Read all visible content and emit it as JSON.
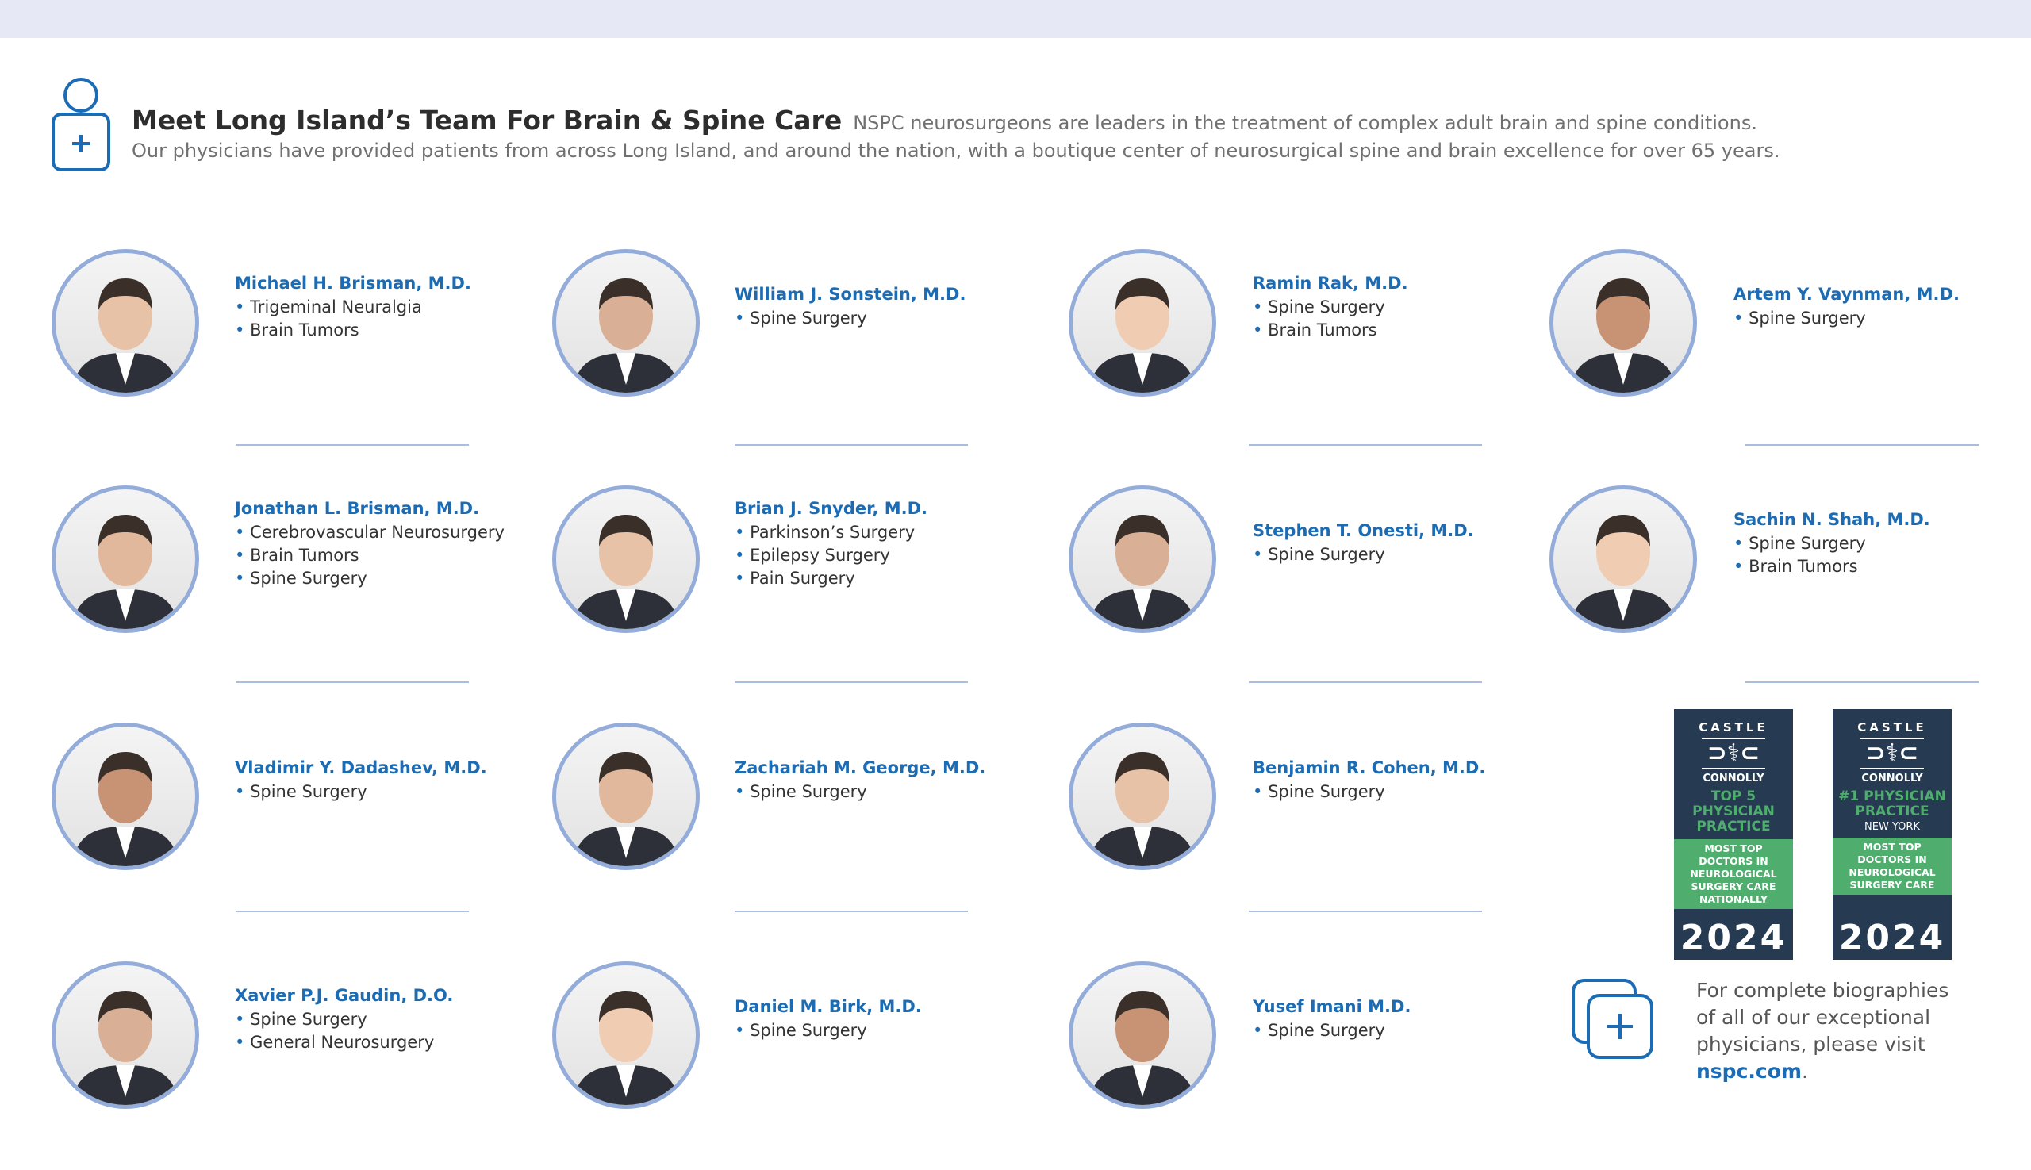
{
  "header": {
    "title": "Meet Long Island’s Team For Brain & Spine Care",
    "subtitle": "NSPC neurosurgeons are leaders in the treatment of complex adult brain and spine conditions.",
    "line2": "Our physicians have provided patients from across Long Island, and around the nation, with a boutique center of neurosurgical spine and brain excellence for over 65 years."
  },
  "colors": {
    "accent": "#1b6cb4",
    "ring": "#93acd9",
    "badge_navy": "#263a52",
    "badge_green": "#4fae6e"
  },
  "doctors": [
    {
      "name": "Michael H. Brisman, M.D.",
      "specialties": [
        "Trigeminal Neuralgia",
        "Brain Tumors"
      ]
    },
    {
      "name": "William J. Sonstein, M.D.",
      "specialties": [
        "Spine Surgery"
      ]
    },
    {
      "name": "Ramin Rak, M.D.",
      "specialties": [
        "Spine Surgery",
        "Brain Tumors"
      ]
    },
    {
      "name": "Artem Y. Vaynman, M.D.",
      "specialties": [
        "Spine Surgery"
      ]
    },
    {
      "name": "Jonathan L. Brisman, M.D.",
      "specialties": [
        "Cerebrovascular Neurosurgery",
        "Brain Tumors",
        "Spine Surgery"
      ]
    },
    {
      "name": "Brian J. Snyder, M.D.",
      "specialties": [
        "Parkinson’s Surgery",
        "Epilepsy Surgery",
        "Pain Surgery"
      ]
    },
    {
      "name": "Stephen T. Onesti, M.D.",
      "specialties": [
        "Spine Surgery"
      ]
    },
    {
      "name": "Sachin N. Shah, M.D.",
      "specialties": [
        "Spine Surgery",
        "Brain Tumors"
      ]
    },
    {
      "name": "Vladimir Y. Dadashev, M.D.",
      "specialties": [
        "Spine Surgery"
      ]
    },
    {
      "name": "Zachariah M. George, M.D.",
      "specialties": [
        "Spine Surgery"
      ]
    },
    {
      "name": "Benjamin R. Cohen, M.D.",
      "specialties": [
        "Spine Surgery"
      ]
    },
    {
      "name": "Xavier P.J. Gaudin, D.O.",
      "specialties": [
        "Spine Surgery",
        "General Neurosurgery"
      ]
    },
    {
      "name": "Daniel M. Birk, M.D.",
      "specialties": [
        "Spine Surgery"
      ]
    },
    {
      "name": "Yusef Imani M.D.",
      "specialties": [
        "Spine Surgery"
      ]
    }
  ],
  "badges": [
    {
      "castle": "CASTLE",
      "connolly": "CONNOLLY",
      "headline": [
        "TOP 5",
        "PHYSICIAN",
        "PRACTICE"
      ],
      "region": "",
      "green": [
        "MOST TOP",
        "DOCTORS IN",
        "NEUROLOGICAL",
        "SURGERY CARE",
        "NATIONALLY"
      ],
      "year": "2024"
    },
    {
      "castle": "CASTLE",
      "connolly": "CONNOLLY",
      "headline": [
        "#1 PHYSICIAN",
        "PRACTICE"
      ],
      "region": "NEW YORK",
      "green": [
        "MOST TOP",
        "DOCTORS IN",
        "NEUROLOGICAL",
        "SURGERY CARE"
      ],
      "year": "2024"
    }
  ],
  "bio": {
    "lines": [
      "For complete biographies",
      "of all of our exceptional",
      "physicians, please visit"
    ],
    "link": "nspc.com",
    "period": "."
  }
}
